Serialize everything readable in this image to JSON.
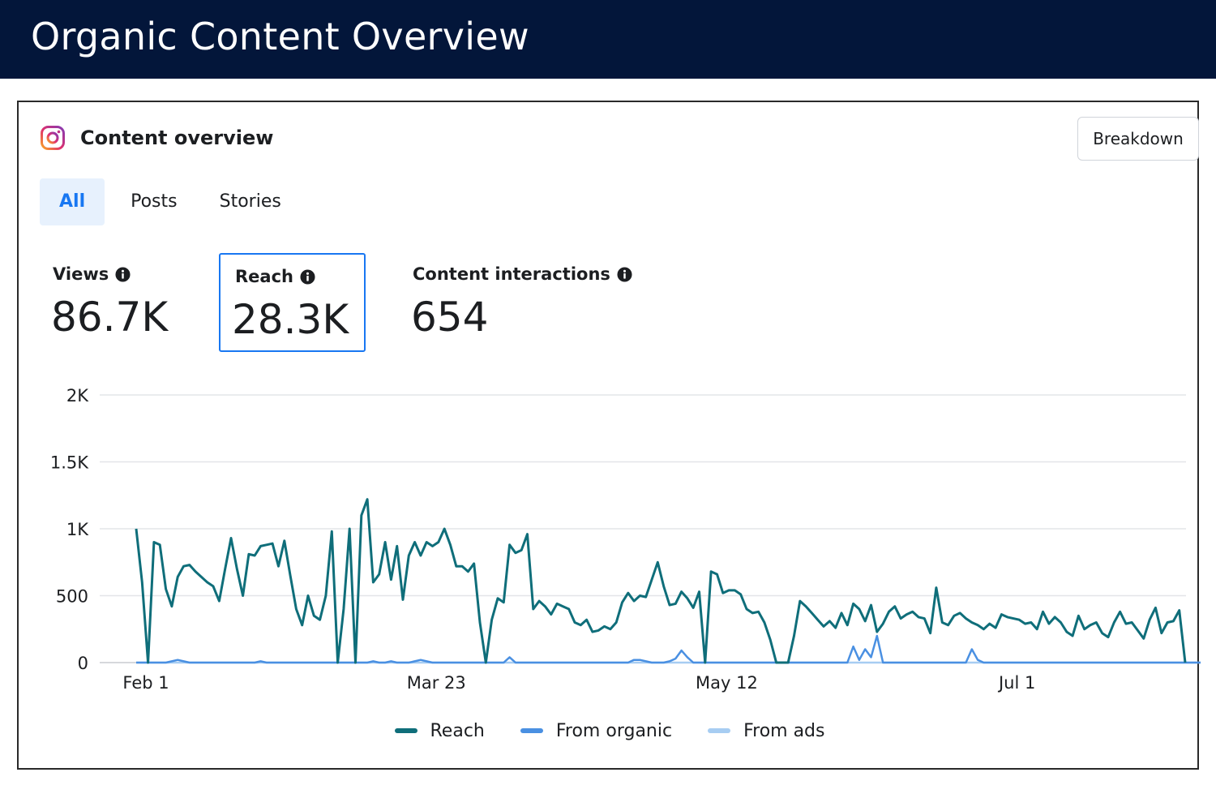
{
  "header": {
    "title": "Organic Content Overview"
  },
  "card": {
    "title": "Content overview",
    "platform_icon": "instagram-icon",
    "breakdown_label": "Breakdown",
    "tabs": [
      {
        "label": "All",
        "active": true
      },
      {
        "label": "Posts",
        "active": false
      },
      {
        "label": "Stories",
        "active": false
      }
    ],
    "metrics": [
      {
        "label": "Views",
        "value": "86.7K",
        "selected": false
      },
      {
        "label": "Reach",
        "value": "28.3K",
        "selected": true
      },
      {
        "label": "Content interactions",
        "value": "654",
        "selected": false
      }
    ]
  },
  "colors": {
    "header_bg": "#03163a",
    "reach": "#0f6e7a",
    "from_organic": "#4a90e2",
    "from_ads": "#a7cdf2",
    "accent": "#1877f2",
    "active_tab_bg": "#e7f1fd"
  },
  "chart_data": {
    "type": "line",
    "x_tick_labels": [
      "Feb 1",
      "Mar 23",
      "May 12",
      "Jul 1"
    ],
    "x_tick_index": [
      0,
      49,
      98,
      147
    ],
    "y_tick_labels": [
      "0",
      "500",
      "1K",
      "1.5K",
      "2K"
    ],
    "y_tick_values": [
      0,
      500,
      1000,
      1500,
      2000
    ],
    "ylim": [
      0,
      2000
    ],
    "grid": true,
    "legend_position": "bottom",
    "series": [
      {
        "name": "Reach",
        "color": "#0f6e7a",
        "values": [
          1000,
          600,
          0,
          900,
          880,
          550,
          420,
          640,
          720,
          730,
          680,
          640,
          600,
          570,
          460,
          700,
          930,
          700,
          500,
          810,
          800,
          870,
          880,
          890,
          720,
          910,
          650,
          400,
          280,
          500,
          350,
          320,
          500,
          980,
          0,
          400,
          1000,
          0,
          1100,
          1220,
          600,
          660,
          900,
          620,
          870,
          470,
          800,
          900,
          800,
          900,
          870,
          900,
          1000,
          880,
          720,
          720,
          680,
          740,
          300,
          0,
          320,
          480,
          450,
          880,
          820,
          840,
          960,
          400,
          460,
          420,
          360,
          440,
          420,
          400,
          300,
          280,
          320,
          230,
          240,
          270,
          250,
          300,
          450,
          520,
          460,
          500,
          490,
          620,
          750,
          570,
          430,
          440,
          530,
          480,
          410,
          530,
          0,
          680,
          660,
          520,
          540,
          540,
          510,
          400,
          370,
          380,
          300,
          170,
          0,
          0,
          0,
          200,
          460,
          420,
          370,
          320,
          270,
          310,
          260,
          370,
          280,
          440,
          400,
          310,
          430,
          230,
          290,
          380,
          420,
          330,
          360,
          380,
          340,
          330,
          220,
          560,
          300,
          280,
          350,
          370,
          330,
          300,
          280,
          250,
          290,
          260,
          360,
          340,
          330,
          320,
          290,
          300,
          250,
          380,
          290,
          340,
          300,
          230,
          200,
          350,
          250,
          280,
          300,
          220,
          190,
          300,
          380,
          290,
          300,
          240,
          180,
          320,
          410,
          220,
          300,
          310,
          390,
          0
        ]
      },
      {
        "name": "From organic",
        "color": "#4a90e2",
        "values": [
          0,
          0,
          0,
          0,
          0,
          0,
          10,
          20,
          10,
          0,
          0,
          0,
          0,
          0,
          0,
          0,
          0,
          0,
          0,
          0,
          0,
          10,
          0,
          0,
          0,
          0,
          0,
          0,
          0,
          0,
          0,
          0,
          0,
          0,
          0,
          0,
          0,
          0,
          0,
          0,
          10,
          0,
          0,
          10,
          0,
          0,
          0,
          10,
          20,
          10,
          0,
          0,
          0,
          0,
          0,
          0,
          0,
          0,
          0,
          0,
          0,
          0,
          0,
          40,
          0,
          0,
          0,
          0,
          0,
          0,
          0,
          0,
          0,
          0,
          0,
          0,
          0,
          0,
          0,
          0,
          0,
          0,
          0,
          0,
          20,
          20,
          10,
          0,
          0,
          0,
          10,
          30,
          90,
          40,
          0,
          0,
          0,
          0,
          0,
          0,
          0,
          0,
          0,
          0,
          0,
          0,
          0,
          0,
          0,
          0,
          0,
          0,
          0,
          0,
          0,
          0,
          0,
          0,
          0,
          0,
          0,
          120,
          20,
          100,
          40,
          200,
          0,
          0,
          0,
          0,
          0,
          0,
          0,
          0,
          0,
          0,
          0,
          0,
          0,
          0,
          0,
          100,
          20,
          0,
          0,
          0,
          0,
          0,
          0,
          0,
          0,
          0,
          0,
          0,
          0,
          0,
          0,
          0,
          0,
          0,
          0,
          0,
          0,
          0,
          0,
          0,
          0,
          0,
          0,
          0,
          0,
          0,
          0,
          0,
          0,
          0,
          0,
          0,
          0,
          0,
          0,
          0,
          0,
          0,
          0
        ]
      },
      {
        "name": "From ads",
        "color": "#a7cdf2",
        "values": [
          0,
          0,
          0,
          0,
          0,
          0,
          0,
          0,
          0,
          0,
          0,
          0,
          0,
          0,
          0,
          0,
          0,
          0,
          0,
          0,
          0,
          0,
          0,
          0,
          0,
          0,
          0,
          0,
          0,
          0,
          0,
          0,
          0,
          0,
          0,
          0,
          0,
          0,
          0,
          0,
          0,
          0,
          0,
          0,
          0,
          0,
          0,
          0,
          0,
          0,
          0,
          0,
          0,
          0,
          0,
          0,
          0,
          0,
          0,
          0,
          0,
          0,
          0,
          0,
          0,
          0,
          0,
          0,
          0,
          0,
          0,
          0,
          0,
          0,
          0,
          0,
          0,
          0,
          0,
          0,
          0,
          0,
          0,
          0,
          0,
          0,
          0,
          0,
          0,
          0,
          0,
          0,
          0,
          0,
          0,
          0,
          0,
          0,
          0,
          0,
          0,
          0,
          0,
          0,
          0,
          0,
          0,
          0,
          0,
          0,
          0,
          0,
          0,
          0,
          0,
          0,
          0,
          0,
          0,
          0,
          0,
          0,
          0,
          0,
          0,
          0,
          0,
          0,
          0,
          0,
          0,
          0,
          0,
          0,
          0,
          0,
          0,
          0,
          0,
          0,
          0,
          0,
          0,
          0,
          0,
          0,
          0,
          0,
          0,
          0,
          0,
          0,
          0,
          0,
          0,
          0,
          0,
          0,
          0,
          0,
          0,
          0,
          0,
          0,
          0,
          0,
          0,
          0,
          0,
          0,
          0,
          0,
          0,
          0,
          0,
          0,
          0,
          0,
          0,
          0,
          0,
          0,
          0,
          0
        ]
      }
    ]
  }
}
